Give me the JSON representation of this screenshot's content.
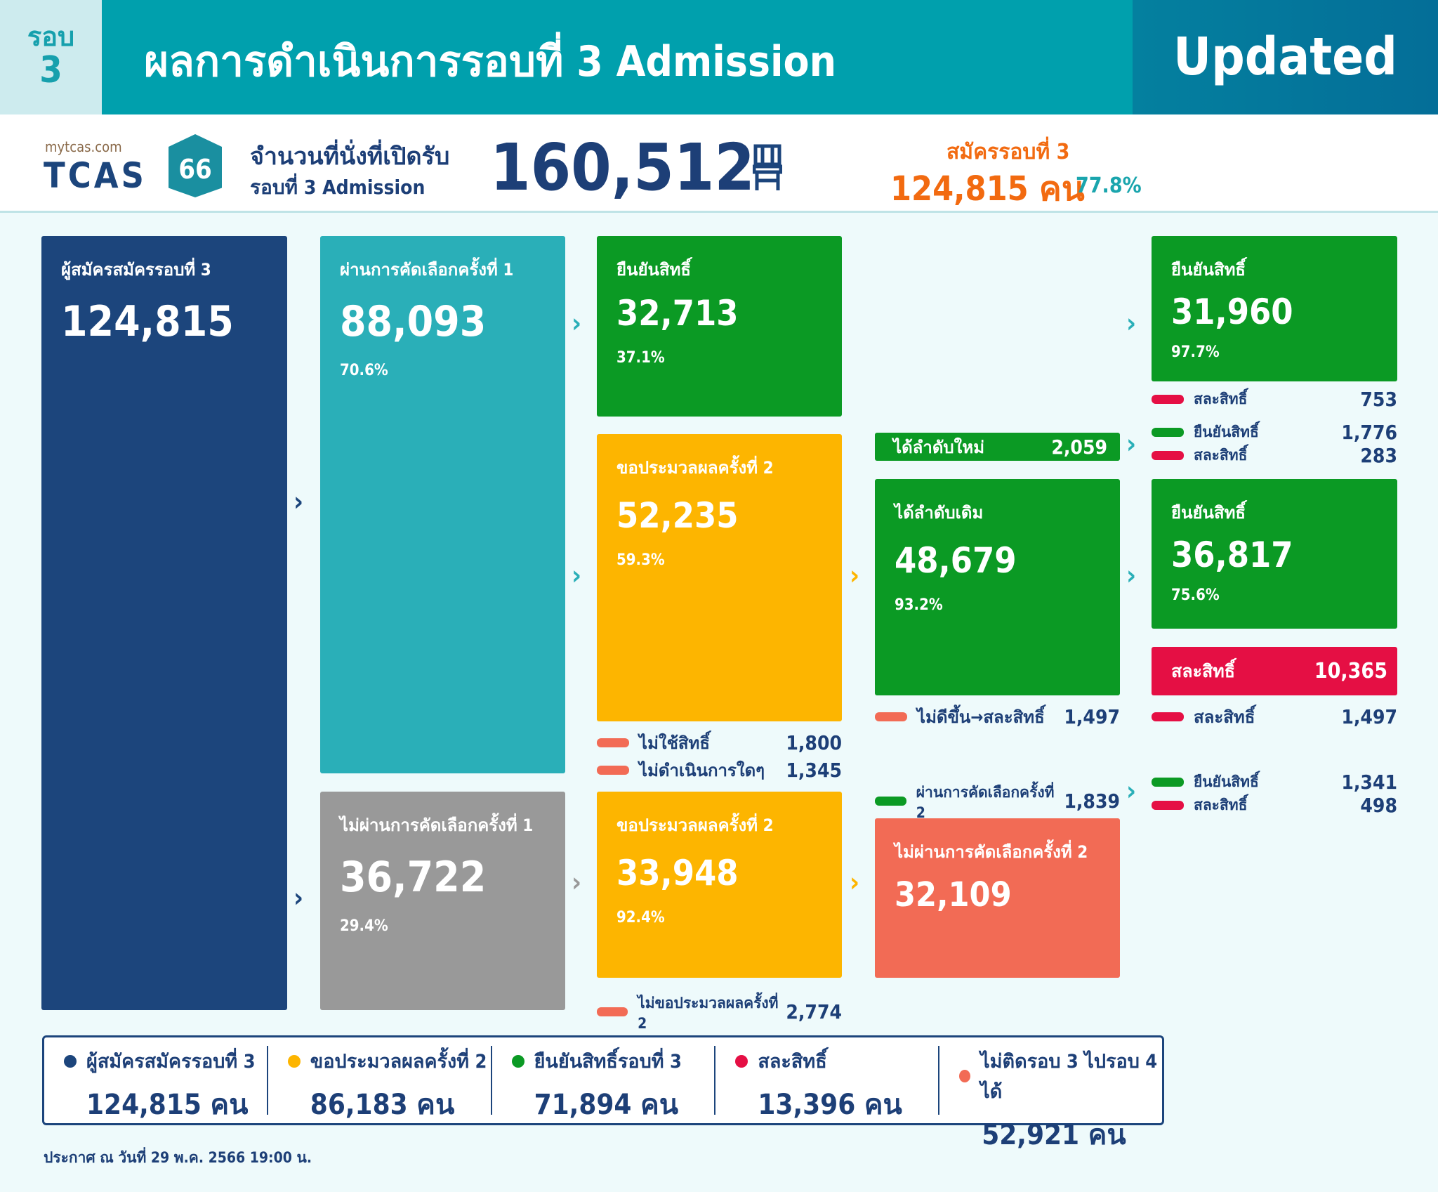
{
  "header": {
    "round_label": "รอบ",
    "round_number": "3",
    "title": "ผลการดำเนินการรอบที่ 3 Admission",
    "updated": "Updated"
  },
  "summary": {
    "site": "mytcas.com",
    "logo": "TCAS",
    "logo_num": "66",
    "seats_label1": "จำนวนที่นั่งที่เปิดรับ",
    "seats_label2": "รอบที่ 3 Admission",
    "seats": "160,512",
    "seat_icon": "chair-icon",
    "applied_label": "สมัครรอบที่ 3",
    "applied": "124,815 คน",
    "applied_pct": "77.8%"
  },
  "flow": {
    "applicants": {
      "label": "ผู้สมัครสมัครรอบที่ 3",
      "value": "124,815"
    },
    "pass1": {
      "label": "ผ่านการคัดเลือกครั้งที่ 1",
      "value": "88,093",
      "pct": "70.6%"
    },
    "fail1": {
      "label": "ไม่ผ่านการคัดเลือกครั้งที่ 1",
      "value": "36,722",
      "pct": "29.4%"
    },
    "confirm1": {
      "label": "ยืนยันสิทธิ์",
      "value": "32,713",
      "pct": "37.1%"
    },
    "reprocess_a": {
      "label": "ขอประมวลผลครั้งที่ 2",
      "value": "52,235",
      "pct": "59.3%"
    },
    "reprocess_a_legend": [
      {
        "label": "ไม่ใช้สิทธิ์",
        "value": "1,800"
      },
      {
        "label": "ไม่ดำเนินการใดๆ",
        "value": "1,345"
      }
    ],
    "reprocess_b": {
      "label": "ขอประมวลผลครั้งที่ 2",
      "value": "33,948",
      "pct": "92.4%"
    },
    "reprocess_b_legend": {
      "label": "ไม่ขอประมวลผลครั้งที่ 2",
      "value": "2,774"
    },
    "new_rank": {
      "label": "ได้ลำดับใหม่",
      "value": "2,059"
    },
    "same_rank": {
      "label": "ได้ลำดับเดิม",
      "value": "48,679",
      "pct": "93.2%"
    },
    "same_rank_legend": {
      "label": "ไม่ดีขึ้น→สละสิทธิ์",
      "value": "1,497"
    },
    "pass2_legend": {
      "label": "ผ่านการคัดเลือกครั้งที่ 2",
      "value": "1,839"
    },
    "fail2": {
      "label": "ไม่ผ่านการคัดเลือกครั้งที่ 2",
      "value": "32,109"
    },
    "final_confirm1": {
      "label": "ยืนยันสิทธิ์",
      "value": "31,960",
      "pct": "97.7%"
    },
    "final_confirm1_legend": {
      "label": "สละสิทธิ์",
      "value": "753"
    },
    "new_rank_legend": [
      {
        "label": "ยืนยันสิทธิ์",
        "value": "1,776"
      },
      {
        "label": "สละสิทธิ์",
        "value": "283"
      }
    ],
    "final_confirm2": {
      "label": "ยืนยันสิทธิ์",
      "value": "36,817",
      "pct": "75.6%"
    },
    "waive": {
      "label": "สละสิทธิ์",
      "value": "10,365"
    },
    "waive_legend": {
      "label": "สละสิทธิ์",
      "value": "1,497"
    },
    "pass2_result": [
      {
        "label": "ยืนยันสิทธิ์",
        "value": "1,341"
      },
      {
        "label": "สละสิทธิ์",
        "value": "498"
      }
    ]
  },
  "totals": [
    {
      "label": "ผู้สมัครสมัครรอบที่ 3",
      "value": "124,815 คน",
      "color": "#1c457c"
    },
    {
      "label": "ขอประมวลผลครั้งที่ 2",
      "value": "86,183 คน",
      "color": "#fdb500"
    },
    {
      "label": "ยืนยันสิทธิ์รอบที่ 3",
      "value": "71,894 คน",
      "color": "#0b9a24"
    },
    {
      "label": "สละสิทธิ์",
      "value": "13,396 คน",
      "color": "#e50f44"
    },
    {
      "label": "ไม่ติดรอบ 3 ไปรอบ 4 ได้",
      "value": "52,921 คน",
      "color": "#f26b55"
    }
  ],
  "footer": "ประกาศ ณ วันที่ 29 พ.ค. 2566 19:00 น."
}
